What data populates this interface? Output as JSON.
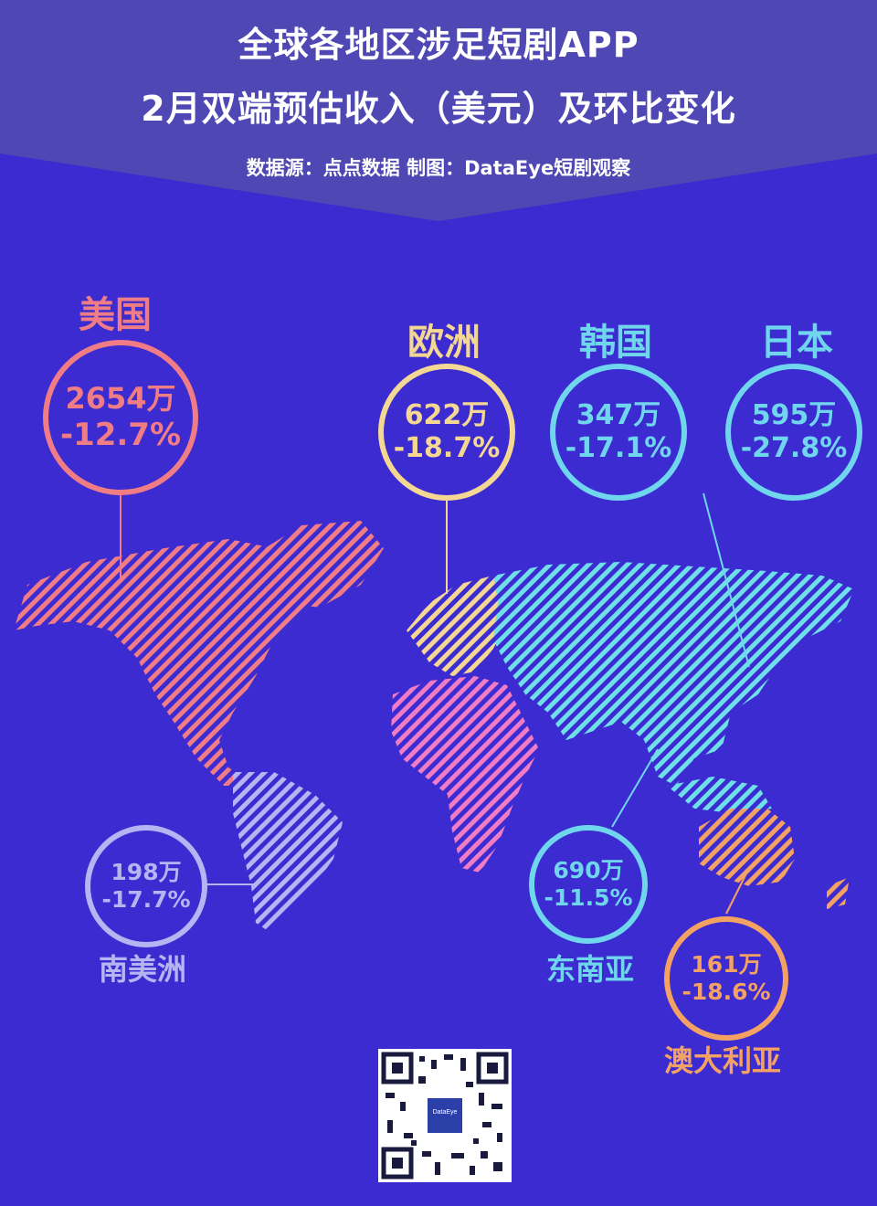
{
  "header": {
    "title_line1": "全球各地区涉足短剧APP",
    "title_line2": "2月双端预估收入（美元）及环比变化",
    "source": "数据源：点点数据  制图：DataEye短剧观察"
  },
  "colors": {
    "background": "#3b2bd0",
    "header_band": "#4f47b3",
    "usa": "#f07c86",
    "europe": "#f4d792",
    "korea": "#6fd6ee",
    "japan": "#6fd6ee",
    "south_america": "#b6b4f2",
    "southeast_asia": "#6fd6ee",
    "australia": "#f4a263",
    "africa": "#f07cc6",
    "asia_map": "#6fe0ea"
  },
  "regions": [
    {
      "id": "usa",
      "name": "美国",
      "revenue": "2654万",
      "change": "-12.7%"
    },
    {
      "id": "europe",
      "name": "欧洲",
      "revenue": "622万",
      "change": "-18.7%"
    },
    {
      "id": "korea",
      "name": "韩国",
      "revenue": "347万",
      "change": "-17.1%"
    },
    {
      "id": "japan",
      "name": "日本",
      "revenue": "595万",
      "change": "-27.8%"
    },
    {
      "id": "south_america",
      "name": "南美洲",
      "revenue": "198万",
      "change": "-17.7%"
    },
    {
      "id": "southeast_asia",
      "name": "东南亚",
      "revenue": "690万",
      "change": "-11.5%"
    },
    {
      "id": "australia",
      "name": "澳大利亚",
      "revenue": "161万",
      "change": "-18.6%"
    }
  ],
  "qr": {
    "center_label": "DataEye",
    "icon": "qr-code-icon"
  }
}
